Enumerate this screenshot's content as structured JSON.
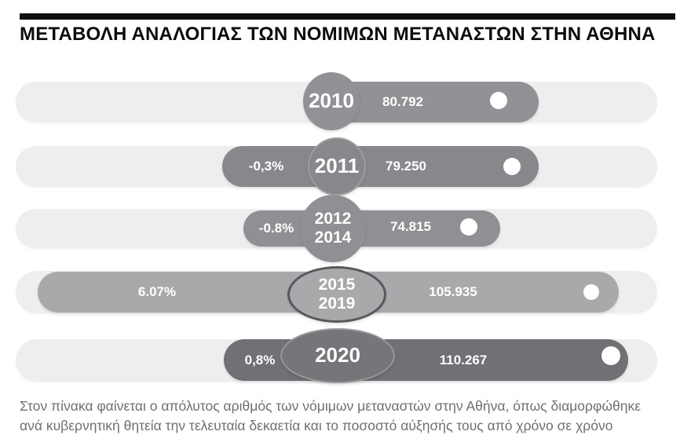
{
  "header": {
    "title": "ΜΕΤΑΒΟΛΗ ΑΝΑΛΟΓΙΑΣ ΤΩΝ ΝΟΜΙΜΩΝ ΜΕΤΑΝΑΣΤΩΝ ΣΤΗΝ ΑΘΗΝΑ"
  },
  "rows": [
    {
      "years": [
        "2010"
      ],
      "value": "80.792",
      "change": null
    },
    {
      "years": [
        "2011"
      ],
      "value": "79.250",
      "change": "-0,3%"
    },
    {
      "years": [
        "2012",
        "2014"
      ],
      "value": "74.815",
      "change": "-0.8%"
    },
    {
      "years": [
        "2015",
        "2019"
      ],
      "value": "105.935",
      "change": "6.07%"
    },
    {
      "years": [
        "2020"
      ],
      "value": "110.267",
      "change": "0,8%"
    }
  ],
  "caption": "Στον πίνακα φαίνεται ο απόλυτος αριθμός των νόμιμων μεταναστών στην Αθήνα, όπως διαμορφώθηκε ανά κυβερνητική θητεία την τελευταία δεκαετία και το ποσοστό αύξησής τους από χρόνο σε χρόνο",
  "colors": {
    "header_rule": "#0d0d0d",
    "track": "#eeeeef",
    "bar_2010": "#929296",
    "bar_2011": "#88888c",
    "bar_2012_2014": "#909094",
    "bar_2015_2019": "#a9a9ac",
    "bar_2020": "#717175",
    "badge_outline_dark": "#58585c",
    "badge_outline_light": "#98989b",
    "label_text": "#ffffff",
    "caption_text": "#6f6f75"
  },
  "chart_data": {
    "type": "bar",
    "orientation": "horizontal",
    "title": "ΜΕΤΑΒΟΛΗ ΑΝΑΛΟΓΙΑΣ ΤΩΝ ΝΟΜΙΜΩΝ ΜΕΤΑΝΑΣΤΩΝ ΣΤΗΝ ΑΘΗΝΑ",
    "categories": [
      "2010",
      "2011",
      "2012-2014",
      "2015-2019",
      "2020"
    ],
    "series": [
      {
        "name": "value",
        "values": [
          80792,
          79250,
          74815,
          105935,
          110267
        ]
      },
      {
        "name": "change_pct",
        "values": [
          null,
          -0.3,
          -0.8,
          6.07,
          0.8
        ]
      }
    ],
    "value_labels": [
      "80.792",
      "79.250",
      "74.815",
      "105.935",
      "110.267"
    ],
    "change_labels": [
      null,
      "-0,3%",
      "-0.8%",
      "6.07%",
      "0,8%"
    ],
    "xlabel": "",
    "ylabel": "",
    "legend": "none",
    "grid": false
  }
}
